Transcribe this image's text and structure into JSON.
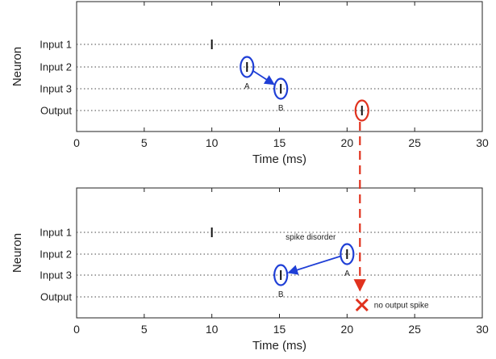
{
  "chart_data": [
    {
      "type": "scatter",
      "title": "",
      "xlabel": "Time (ms)",
      "ylabel": "Neuron",
      "xlim": [
        0,
        30
      ],
      "x_ticks": [
        "0",
        "5",
        "10",
        "15",
        "20",
        "25",
        "30"
      ],
      "neurons": [
        "Input 1",
        "Input 2",
        "Input 3",
        "Output"
      ],
      "grid": "dotted horizontal line per neuron",
      "spikes": [
        {
          "neuron": "Input 1",
          "t": 10
        },
        {
          "neuron": "Input 2",
          "t": 12.6,
          "label": "A"
        },
        {
          "neuron": "Input 3",
          "t": 15.1,
          "label": "B"
        },
        {
          "neuron": "Output",
          "t": 21.1
        }
      ],
      "arrows": [
        {
          "from": "A",
          "to": "B",
          "color": "#1f3fd6",
          "label": ""
        }
      ]
    },
    {
      "type": "scatter",
      "title": "",
      "xlabel": "Time (ms)",
      "ylabel": "Neuron",
      "xlim": [
        0,
        30
      ],
      "x_ticks": [
        "0",
        "5",
        "10",
        "15",
        "20",
        "25",
        "30"
      ],
      "neurons": [
        "Input 1",
        "Input 2",
        "Input 3",
        "Output"
      ],
      "grid": "dotted horizontal line per neuron",
      "spikes": [
        {
          "neuron": "Input 1",
          "t": 10
        },
        {
          "neuron": "Input 2",
          "t": 20.0,
          "label": "A"
        },
        {
          "neuron": "Input 3",
          "t": 15.1,
          "label": "B"
        }
      ],
      "arrows": [
        {
          "from": "A",
          "to": "B",
          "color": "#1f3fd6",
          "label": "spike disorder"
        }
      ],
      "missing_output_at": 21.1,
      "missing_output_label": "no output spike"
    }
  ],
  "colors": {
    "highlight_blue": "#1f3fd6",
    "highlight_red": "#e0321e",
    "axis": "#222222",
    "grid": "#444444"
  }
}
